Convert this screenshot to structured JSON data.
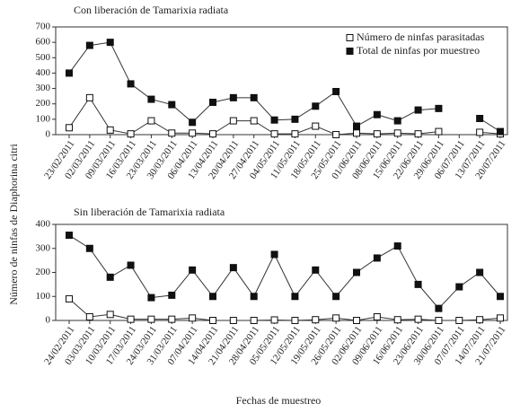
{
  "ylabel": "Número de ninfas de Diaphorina citri",
  "xlabel": "Fechas de muestreo",
  "chart_data": [
    {
      "type": "line",
      "title": "Con liberación de Tamarixia radiata",
      "categories": [
        "23/02/2011",
        "02/03/2011",
        "09/03/2011",
        "16/03/2011",
        "23/03/2011",
        "30/03/2011",
        "06/04/2011",
        "13/04/2011",
        "20/04/2011",
        "27/04/2011",
        "04/05/2011",
        "11/05/2011",
        "18/05/2011",
        "25/05/2011",
        "01/06/2011",
        "08/06/2011",
        "15/06/2011",
        "22/06/2011",
        "29/06/2011",
        "06/07/2011",
        "13/07/2011",
        "20/07/2011"
      ],
      "series": [
        {
          "name": "Número de ninfas parasitadas",
          "color": "#ffffff",
          "values": [
            45,
            240,
            30,
            5,
            90,
            10,
            10,
            5,
            90,
            90,
            5,
            5,
            55,
            0,
            10,
            5,
            10,
            5,
            20,
            null,
            15,
            5
          ]
        },
        {
          "name": "Total de ninfas por muestreo",
          "color": "#111111",
          "values": [
            400,
            580,
            600,
            330,
            230,
            195,
            80,
            210,
            240,
            240,
            95,
            100,
            185,
            280,
            55,
            130,
            90,
            160,
            170,
            null,
            105,
            20
          ]
        }
      ],
      "ylim": [
        0,
        700
      ],
      "yticks": [
        0,
        100,
        200,
        300,
        400,
        500,
        600,
        700
      ],
      "legend": "upper right"
    },
    {
      "type": "line",
      "title": "Sin liberación de Tamarixia radiata",
      "categories": [
        "24/02/2011",
        "03/03/2011",
        "10/03/2011",
        "17/03/2011",
        "24/03/2011",
        "31/03/2011",
        "07/04/2011",
        "14/04/2011",
        "21/04/2011",
        "28/04/2011",
        "05/05/2011",
        "12/05/2011",
        "19/05/2011",
        "26/05/2011",
        "02/06/2011",
        "09/06/2011",
        "16/06/2011",
        "23/06/2011",
        "30/06/2011",
        "07/07/2011",
        "14/07/2011",
        "21/07/2011"
      ],
      "series": [
        {
          "color": "#ffffff",
          "values": [
            90,
            15,
            25,
            5,
            5,
            5,
            10,
            0,
            0,
            0,
            2,
            0,
            3,
            10,
            0,
            15,
            3,
            5,
            0,
            0,
            3,
            10
          ]
        },
        {
          "color": "#111111",
          "values": [
            355,
            300,
            180,
            230,
            95,
            105,
            210,
            100,
            220,
            100,
            275,
            100,
            210,
            100,
            200,
            260,
            310,
            150,
            50,
            140,
            200,
            100
          ]
        }
      ],
      "ylim": [
        0,
        400
      ],
      "yticks": [
        0,
        100,
        200,
        300,
        400
      ]
    }
  ]
}
